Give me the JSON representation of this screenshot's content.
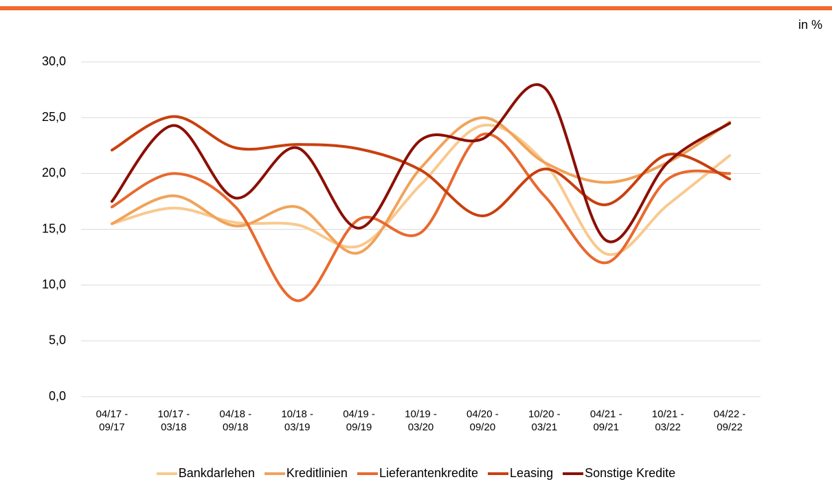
{
  "chart_data": {
    "type": "line",
    "unit": "in %",
    "categories": [
      "04/17 - 09/17",
      "10/17 - 03/18",
      "04/18 - 09/18",
      "10/18 - 03/19",
      "04/19 - 09/19",
      "10/19 - 03/20",
      "04/20 - 09/20",
      "10/20 - 03/21",
      "04/21 - 09/21",
      "10/21 - 03/22",
      "04/22 - 09/22"
    ],
    "series": [
      {
        "name": "Bankdarlehen",
        "color": "#f9c98e",
        "values": [
          15.5,
          16.9,
          15.6,
          15.4,
          13.5,
          19.0,
          24.3,
          21.0,
          12.8,
          17.2,
          21.6
        ]
      },
      {
        "name": "Kreditlinien",
        "color": "#f0a35a",
        "values": [
          15.5,
          18.0,
          15.3,
          17.0,
          12.9,
          20.5,
          25.0,
          21.0,
          19.2,
          21.0,
          24.6
        ]
      },
      {
        "name": "Lieferantenkredite",
        "color": "#e8692e",
        "values": [
          17.0,
          20.0,
          17.0,
          8.6,
          15.9,
          14.7,
          23.5,
          18.0,
          12.0,
          19.5,
          20.0
        ]
      },
      {
        "name": "Leasing",
        "color": "#c8400f",
        "values": [
          22.1,
          25.1,
          22.3,
          22.6,
          22.2,
          20.3,
          16.2,
          20.4,
          17.2,
          21.7,
          19.5
        ]
      },
      {
        "name": "Sonstige Kredite",
        "color": "#8b0f04",
        "values": [
          17.5,
          24.3,
          17.8,
          22.3,
          15.1,
          23.0,
          23.1,
          27.7,
          14.0,
          21.0,
          24.5
        ]
      }
    ],
    "ylim": [
      0,
      30
    ],
    "yticks": [
      {
        "value": 0,
        "label": "0,0"
      },
      {
        "value": 5,
        "label": "5,0"
      },
      {
        "value": 10,
        "label": "10,0"
      },
      {
        "value": 15,
        "label": "15,0"
      },
      {
        "value": 20,
        "label": "20,0"
      },
      {
        "value": 25,
        "label": "25,0"
      },
      {
        "value": 30,
        "label": "30,0"
      }
    ],
    "grid": true,
    "smooth": true
  }
}
